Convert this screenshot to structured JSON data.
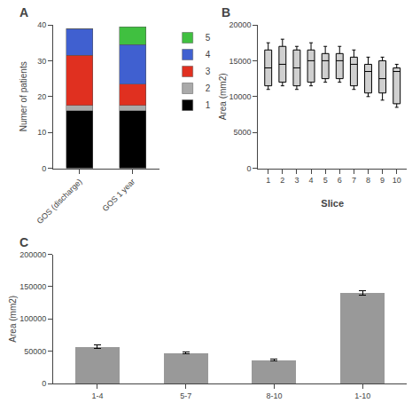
{
  "chart_data": [
    {
      "type": "bar",
      "title": "A",
      "stacked": true,
      "categories": [
        "GOS (discharge)",
        "GOS 1 year"
      ],
      "series": [
        {
          "name": "1",
          "color": "#000000",
          "values": [
            16,
            16
          ]
        },
        {
          "name": "2",
          "color": "#aaaaaa",
          "values": [
            1.5,
            1.5
          ]
        },
        {
          "name": "3",
          "color": "#e03020",
          "values": [
            14,
            6
          ]
        },
        {
          "name": "4",
          "color": "#4060d0",
          "values": [
            7.5,
            11
          ]
        },
        {
          "name": "5",
          "color": "#40c040",
          "values": [
            0,
            5
          ]
        }
      ],
      "ylabel": "Numer of patients",
      "ylim": [
        0,
        40
      ],
      "yticks": [
        0,
        10,
        20,
        30,
        40
      ],
      "legend": "right",
      "grid": false
    },
    {
      "type": "box",
      "title": "B",
      "xlabel": "Slice",
      "ylabel": "Area (mm2)",
      "x": [
        1,
        2,
        3,
        4,
        5,
        6,
        7,
        8,
        9,
        10
      ],
      "xlim": [
        0.3,
        10.7
      ],
      "xticks": [
        1,
        2,
        3,
        4,
        5,
        6,
        7,
        8,
        9,
        10
      ],
      "ylim": [
        0,
        20000
      ],
      "yticks": [
        0,
        5000,
        10000,
        15000,
        20000
      ],
      "q1": [
        11500,
        12000,
        11500,
        12000,
        12500,
        12500,
        11500,
        10500,
        10500,
        9000
      ],
      "median": [
        14000,
        14500,
        14000,
        15000,
        15000,
        15000,
        14500,
        13500,
        12500,
        13500
      ],
      "q3": [
        16500,
        17000,
        16500,
        16500,
        16000,
        16000,
        15500,
        14500,
        15000,
        14000
      ],
      "whislo": [
        11000,
        11500,
        11000,
        11500,
        12000,
        12000,
        11000,
        10000,
        9500,
        8500
      ],
      "whishi": [
        17500,
        18000,
        17000,
        17500,
        17000,
        17000,
        16500,
        15500,
        15500,
        14500
      ],
      "color": "#d0d0d0",
      "grid": false
    },
    {
      "type": "bar",
      "title": "C",
      "categories": [
        "1-4",
        "5-7",
        "8-10",
        "1-10"
      ],
      "values": [
        57000,
        47000,
        36000,
        140000
      ],
      "errors": [
        2500,
        1500,
        1500,
        3500
      ],
      "color": "#999999",
      "ylabel": "Area (mm2)",
      "ylim": [
        0,
        200000
      ],
      "yticks": [
        0,
        50000,
        100000,
        150000,
        200000
      ],
      "grid": false
    }
  ]
}
